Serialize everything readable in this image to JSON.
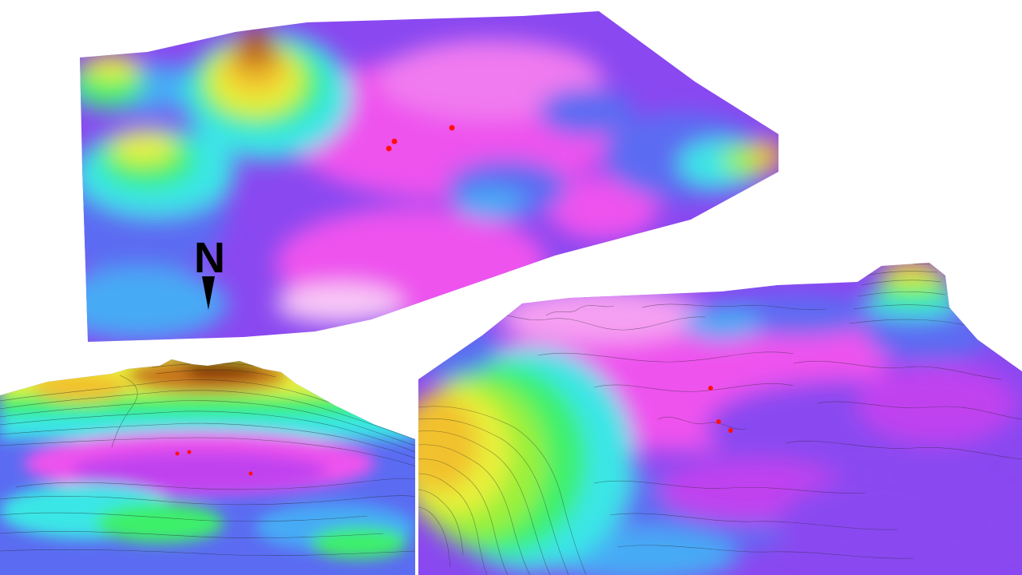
{
  "figure": {
    "north_label": "N",
    "palette": [
      "#7a2a00",
      "#c8761a",
      "#f2c12e",
      "#e8f03a",
      "#9af03a",
      "#3cf06a",
      "#3ae6e6",
      "#47aaf5",
      "#5b6cf2",
      "#8a48f0",
      "#c043ef",
      "#ee52ee",
      "#f89af2",
      "#ffffff"
    ],
    "marker_color": "#ff1010",
    "views": [
      {
        "id": "overview",
        "contours": false,
        "markers": 3
      },
      {
        "id": "low-angle-view",
        "contours": true,
        "markers": 3
      },
      {
        "id": "close-view",
        "contours": true,
        "markers": 3
      }
    ]
  }
}
